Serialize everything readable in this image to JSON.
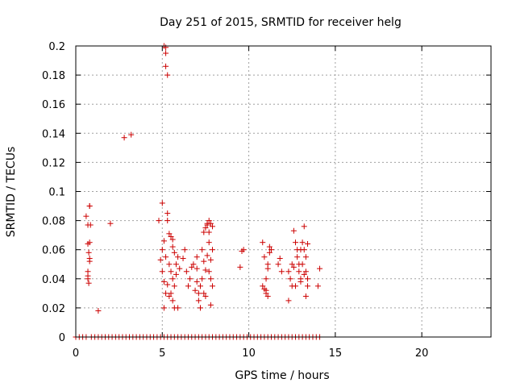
{
  "chart_data": {
    "type": "scatter",
    "title": "Day 251 of 2015, SRMTID for receiver helg",
    "xlabel": "GPS time / hours",
    "ylabel": "SRMTID / TECUs",
    "xlim": [
      0,
      24
    ],
    "ylim": [
      0,
      0.2
    ],
    "x_ticks": [
      0,
      5,
      10,
      15,
      20
    ],
    "x_tick_labels": [
      "0",
      "5",
      "10",
      "15",
      "20"
    ],
    "y_ticks": [
      0,
      0.02,
      0.04,
      0.06,
      0.08,
      0.1,
      0.12,
      0.14,
      0.16,
      0.18,
      0.2
    ],
    "y_tick_labels": [
      "0",
      "0.02",
      "0.04",
      "0.06",
      "0.08",
      "0.1",
      "0.12",
      "0.14",
      "0.16",
      "0.18",
      "0.2"
    ],
    "grid": true,
    "legend": "none",
    "colors": {
      "series": "#cc0000",
      "grid": "#a0a0a0",
      "axis": "#000000"
    },
    "series": [
      {
        "name": "SRMTID",
        "marker": "plus",
        "points": [
          [
            0.6,
            0.083
          ],
          [
            0.7,
            0.077
          ],
          [
            0.7,
            0.064
          ],
          [
            0.8,
            0.09
          ],
          [
            0.8,
            0.09
          ],
          [
            0.75,
            0.058
          ],
          [
            0.8,
            0.052
          ],
          [
            0.7,
            0.045
          ],
          [
            0.7,
            0.04
          ],
          [
            0.75,
            0.037
          ],
          [
            0.8,
            0.054
          ],
          [
            0.8,
            0.065
          ],
          [
            0.85,
            0.077
          ],
          [
            0.7,
            0.042
          ],
          [
            1.3,
            0.018
          ],
          [
            2.0,
            0.078
          ],
          [
            2.8,
            0.137
          ],
          [
            3.2,
            0.139
          ],
          [
            4.8,
            0.08
          ],
          [
            5.0,
            0.092
          ],
          [
            5.1,
            0.2
          ],
          [
            5.2,
            0.199
          ],
          [
            5.2,
            0.195
          ],
          [
            5.2,
            0.186
          ],
          [
            5.3,
            0.18
          ],
          [
            4.9,
            0.053
          ],
          [
            5.0,
            0.06
          ],
          [
            5.1,
            0.066
          ],
          [
            5.0,
            0.045
          ],
          [
            5.1,
            0.038
          ],
          [
            5.2,
            0.03
          ],
          [
            5.1,
            0.02
          ],
          [
            5.3,
            0.085
          ],
          [
            5.3,
            0.08
          ],
          [
            5.4,
            0.071
          ],
          [
            5.4,
            0.05
          ],
          [
            5.2,
            0.055
          ],
          [
            5.5,
            0.069
          ],
          [
            5.6,
            0.067
          ],
          [
            5.6,
            0.062
          ],
          [
            5.7,
            0.058
          ],
          [
            5.5,
            0.045
          ],
          [
            5.6,
            0.04
          ],
          [
            5.7,
            0.035
          ],
          [
            5.8,
            0.05
          ],
          [
            5.9,
            0.055
          ],
          [
            5.8,
            0.043
          ],
          [
            5.5,
            0.03
          ],
          [
            5.6,
            0.025
          ],
          [
            5.7,
            0.02
          ],
          [
            5.9,
            0.02
          ],
          [
            6.0,
            0.047
          ],
          [
            5.4,
            0.028
          ],
          [
            5.3,
            0.036
          ],
          [
            6.2,
            0.054
          ],
          [
            6.3,
            0.06
          ],
          [
            6.4,
            0.045
          ],
          [
            6.5,
            0.035
          ],
          [
            6.6,
            0.04
          ],
          [
            6.7,
            0.048
          ],
          [
            6.8,
            0.05
          ],
          [
            7.0,
            0.047
          ],
          [
            7.0,
            0.038
          ],
          [
            7.1,
            0.03
          ],
          [
            7.1,
            0.025
          ],
          [
            7.2,
            0.02
          ],
          [
            7.0,
            0.055
          ],
          [
            7.2,
            0.035
          ],
          [
            7.3,
            0.04
          ],
          [
            7.3,
            0.06
          ],
          [
            7.4,
            0.052
          ],
          [
            7.5,
            0.046
          ],
          [
            7.4,
            0.03
          ],
          [
            7.5,
            0.028
          ],
          [
            6.9,
            0.032
          ],
          [
            7.4,
            0.072
          ],
          [
            7.5,
            0.075
          ],
          [
            7.6,
            0.077
          ],
          [
            7.7,
            0.08
          ],
          [
            7.6,
            0.078
          ],
          [
            7.8,
            0.078
          ],
          [
            7.7,
            0.065
          ],
          [
            7.6,
            0.056
          ],
          [
            7.7,
            0.045
          ],
          [
            7.8,
            0.04
          ],
          [
            7.9,
            0.06
          ],
          [
            7.8,
            0.053
          ],
          [
            7.9,
            0.035
          ],
          [
            7.8,
            0.022
          ],
          [
            7.9,
            0.076
          ],
          [
            7.7,
            0.072
          ],
          [
            9.5,
            0.048
          ],
          [
            9.6,
            0.059
          ],
          [
            9.7,
            0.06
          ],
          [
            10.8,
            0.065
          ],
          [
            10.9,
            0.055
          ],
          [
            11.0,
            0.04
          ],
          [
            10.9,
            0.033
          ],
          [
            11.0,
            0.03
          ],
          [
            11.1,
            0.028
          ],
          [
            11.1,
            0.047
          ],
          [
            11.2,
            0.062
          ],
          [
            11.3,
            0.06
          ],
          [
            11.2,
            0.058
          ],
          [
            11.1,
            0.05
          ],
          [
            10.8,
            0.035
          ],
          [
            11.0,
            0.032
          ],
          [
            11.7,
            0.05
          ],
          [
            11.8,
            0.054
          ],
          [
            11.9,
            0.045
          ],
          [
            12.3,
            0.045
          ],
          [
            12.4,
            0.04
          ],
          [
            12.5,
            0.035
          ],
          [
            12.5,
            0.05
          ],
          [
            12.6,
            0.048
          ],
          [
            12.7,
            0.065
          ],
          [
            12.6,
            0.073
          ],
          [
            12.8,
            0.06
          ],
          [
            12.8,
            0.055
          ],
          [
            12.9,
            0.05
          ],
          [
            12.9,
            0.045
          ],
          [
            13.0,
            0.04
          ],
          [
            12.7,
            0.035
          ],
          [
            12.3,
            0.025
          ],
          [
            13.0,
            0.06
          ],
          [
            13.1,
            0.065
          ],
          [
            13.2,
            0.076
          ],
          [
            13.2,
            0.06
          ],
          [
            13.3,
            0.055
          ],
          [
            13.3,
            0.045
          ],
          [
            13.4,
            0.04
          ],
          [
            13.4,
            0.035
          ],
          [
            13.3,
            0.028
          ],
          [
            13.1,
            0.05
          ],
          [
            13.2,
            0.043
          ],
          [
            13.0,
            0.038
          ],
          [
            13.4,
            0.064
          ],
          [
            14.0,
            0.035
          ],
          [
            14.1,
            0.047
          ]
        ],
        "zero_points_x": [
          0.0,
          0.2,
          0.4,
          0.6,
          0.9,
          1.1,
          1.3,
          1.5,
          1.7,
          1.9,
          2.1,
          2.3,
          2.5,
          2.7,
          2.9,
          3.1,
          3.3,
          3.5,
          3.7,
          3.9,
          4.1,
          4.3,
          4.5,
          4.7,
          4.9,
          5.1,
          5.3,
          5.5,
          5.7,
          5.9,
          6.1,
          6.3,
          6.5,
          6.7,
          6.9,
          7.1,
          7.3,
          7.5,
          7.7,
          7.9,
          8.1,
          8.3,
          8.5,
          8.7,
          8.9,
          9.1,
          9.3,
          9.5,
          9.7,
          9.9,
          10.1,
          10.3,
          10.5,
          10.7,
          10.9,
          11.1,
          11.3,
          11.5,
          11.7,
          11.9,
          12.1,
          12.3,
          12.5,
          12.7,
          12.9,
          13.1,
          13.3,
          13.5,
          13.7,
          13.9,
          14.1
        ]
      }
    ]
  }
}
